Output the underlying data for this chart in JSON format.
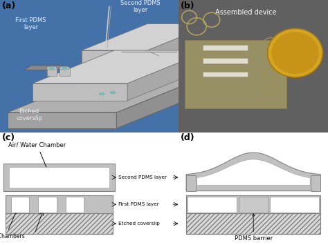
{
  "panel_a_label": "(a)",
  "panel_b_label": "(b)",
  "panel_c_label": "(c)",
  "panel_d_label": "(d)",
  "panel_a_bg": "#4472a8",
  "panel_b_bg": "#606060",
  "panel_b_title": "Assembled device",
  "panel_c_labels": [
    "Air/ Water Chamber",
    "Second PDMS layer",
    "First PDMS layer",
    "Etched coverslip",
    "Cell Chambers"
  ],
  "panel_d_label_text": "PDMS barrier",
  "first_pdms_label": "First PDMS\nlayer",
  "second_pdms_label": "Second PDMS\nlayer",
  "etched_coverslip_label": "Etched\ncoverslip",
  "white": "#ffffff",
  "black": "#000000",
  "gray_layer": "#c8c8c8",
  "gray_dark": "#909090",
  "gray_med": "#b0b0b0",
  "hatch_fc": "#d0d0d0",
  "text_white": "#e8f0ff",
  "coin_color": "#d4a520",
  "coin_inner": "#c89418"
}
